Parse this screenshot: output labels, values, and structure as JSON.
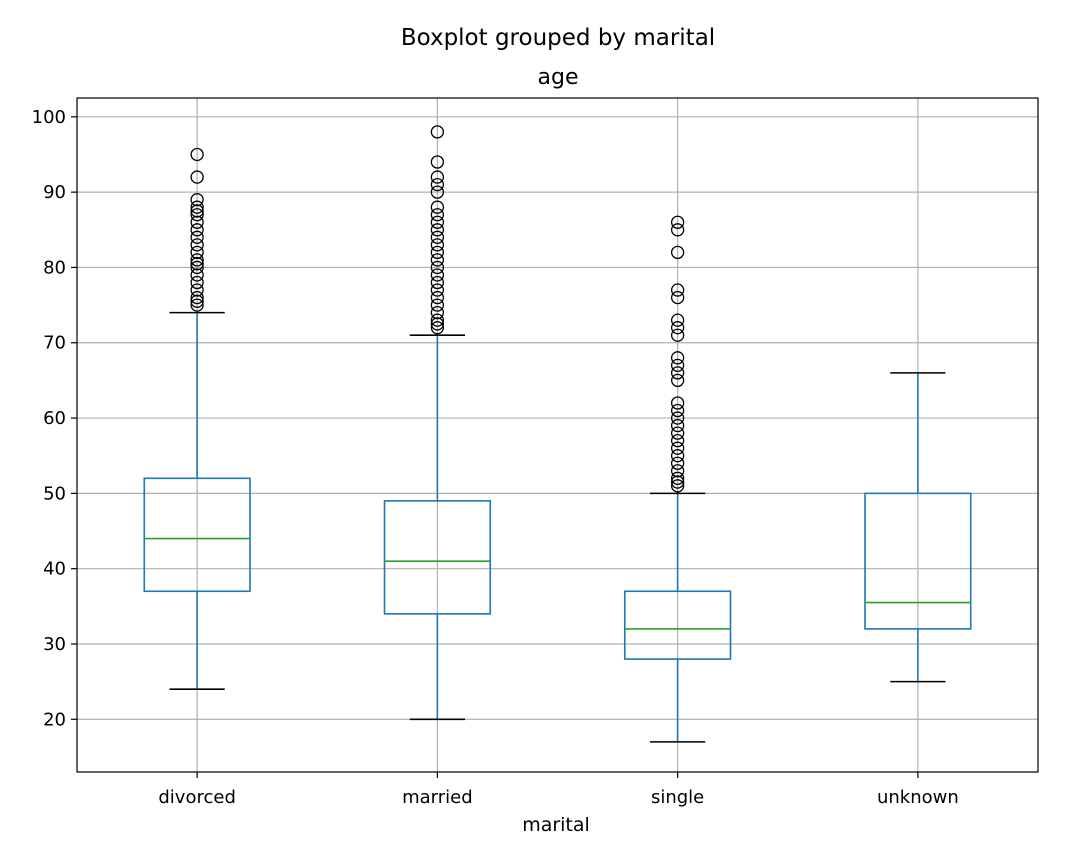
{
  "chart_data": {
    "type": "boxplot",
    "title": "Boxplot grouped by marital",
    "subtitle": "age",
    "xlabel": "marital",
    "ylabel": "",
    "ylim": [
      13,
      102.5
    ],
    "yticks": [
      20,
      30,
      40,
      50,
      60,
      70,
      80,
      90,
      100
    ],
    "grid": true,
    "categories": [
      "divorced",
      "married",
      "single",
      "unknown"
    ],
    "boxes": [
      {
        "name": "divorced",
        "whisker_low": 24,
        "q1": 37,
        "median": 44,
        "q3": 52,
        "whisker_high": 74,
        "outliers": [
          75,
          75.5,
          76,
          77,
          78,
          79,
          80,
          80.5,
          81,
          82,
          83,
          84,
          85,
          86,
          87,
          87.5,
          88,
          89,
          92,
          95
        ]
      },
      {
        "name": "married",
        "whisker_low": 20,
        "q1": 34,
        "median": 41,
        "q3": 49,
        "whisker_high": 71,
        "outliers": [
          72,
          72.5,
          73,
          74,
          75,
          76,
          77,
          78,
          79,
          80,
          81,
          82,
          83,
          84,
          85,
          86,
          87,
          88,
          90,
          91,
          92,
          94,
          98
        ]
      },
      {
        "name": "single",
        "whisker_low": 17,
        "q1": 28,
        "median": 32,
        "q3": 37,
        "whisker_high": 50,
        "outliers": [
          51,
          51.5,
          52,
          53,
          54,
          55,
          56,
          57,
          58,
          59,
          60,
          61,
          62,
          65,
          66,
          67,
          68,
          71,
          72,
          73,
          76,
          77,
          82,
          85,
          86
        ]
      },
      {
        "name": "unknown",
        "whisker_low": 25,
        "q1": 32,
        "median": 35.5,
        "q3": 50,
        "whisker_high": 66,
        "outliers": []
      }
    ],
    "colors": {
      "box": "#1f77b4",
      "median": "#2ca02c",
      "cap": "#000000",
      "outlier": "#000000",
      "grid": "#b0b0b0"
    }
  }
}
